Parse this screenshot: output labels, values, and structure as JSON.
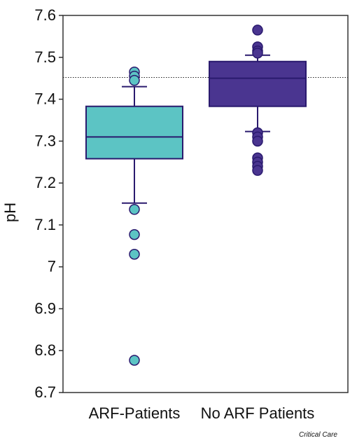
{
  "credit": "Critical Care",
  "chart_data": {
    "type": "box",
    "ylabel": "pH",
    "ylim": [
      6.7,
      7.6
    ],
    "yticks": [
      6.7,
      6.8,
      6.9,
      7,
      7.1,
      7.2,
      7.3,
      7.4,
      7.5,
      7.6
    ],
    "ytick_labels": [
      "6.7",
      "6.8",
      "6.9",
      "7",
      "7.1",
      "7.2",
      "7.3",
      "7.4",
      "7.5",
      "7.6"
    ],
    "grid": false,
    "reference_line": {
      "y": 7.452,
      "style": "dotted"
    },
    "categories": [
      "ARF-Patients",
      "No ARF Patients"
    ],
    "colors": {
      "ARF-Patients": "#5cc4c4",
      "No ARF Patients": "#4a3590",
      "outline": "#2a1a6e"
    },
    "boxes": [
      {
        "category": "ARF-Patients",
        "whisker_low": 7.152,
        "q1": 7.258,
        "median": 7.31,
        "q3": 7.383,
        "whisker_high": 7.43,
        "outliers": [
          7.465,
          7.455,
          7.445,
          7.137,
          7.077,
          7.03,
          6.777
        ]
      },
      {
        "category": "No ARF Patients",
        "whisker_low": 7.323,
        "q1": 7.383,
        "median": 7.45,
        "q3": 7.49,
        "whisker_high": 7.505,
        "outliers": [
          7.565,
          7.525,
          7.515,
          7.51,
          7.32,
          7.31,
          7.3,
          7.26,
          7.25,
          7.24,
          7.23
        ]
      }
    ]
  }
}
